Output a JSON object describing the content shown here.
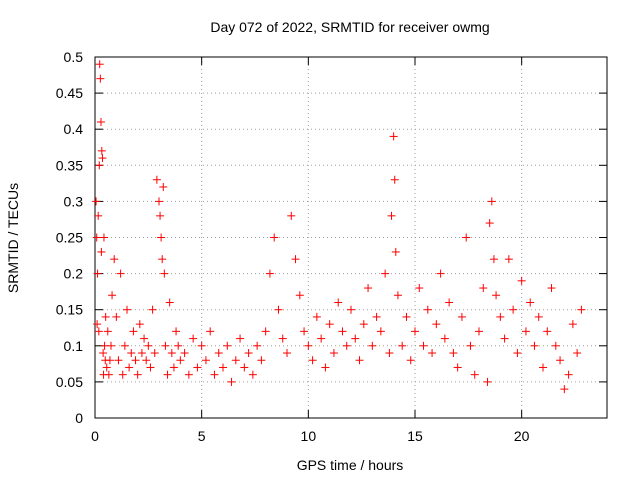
{
  "chart_data": {
    "type": "scatter",
    "title": "Day 072 of 2022, SRMTID for receiver owmg",
    "xlabel": "GPS time / hours",
    "ylabel": "SRMTID / TECUs",
    "xlim": [
      0,
      24
    ],
    "ylim": [
      0,
      0.5
    ],
    "xticks": [
      0,
      5,
      10,
      15,
      20
    ],
    "xtick_labels": [
      "0",
      "5",
      "10",
      "15",
      "20"
    ],
    "yticks": [
      0,
      0.05,
      0.1,
      0.15,
      0.2,
      0.25,
      0.3,
      0.35,
      0.4,
      0.45,
      0.5
    ],
    "ytick_labels": [
      "0",
      "0.05",
      "0.1",
      "0.15",
      "0.2",
      "0.25",
      "0.3",
      "0.35",
      "0.4",
      "0.45",
      "0.5"
    ],
    "grid": true,
    "marker": "+",
    "marker_color": "#ff0000",
    "series": [
      {
        "name": "SRMTID",
        "x": [
          0.05,
          0.08,
          0.1,
          0.12,
          0.15,
          0.18,
          0.2,
          0.22,
          0.25,
          0.28,
          0.3,
          0.32,
          0.35,
          0.38,
          0.4,
          0.42,
          0.45,
          0.48,
          0.5,
          0.55,
          0.6,
          0.65,
          0.7,
          0.75,
          0.8,
          0.9,
          1.0,
          1.1,
          1.2,
          1.3,
          1.4,
          1.5,
          1.6,
          1.7,
          1.8,
          1.9,
          2.0,
          2.1,
          2.2,
          2.3,
          2.4,
          2.5,
          2.6,
          2.7,
          2.8,
          2.9,
          3.0,
          3.05,
          3.1,
          3.15,
          3.2,
          3.25,
          3.3,
          3.4,
          3.5,
          3.6,
          3.7,
          3.8,
          3.9,
          4.0,
          4.2,
          4.4,
          4.6,
          4.8,
          5.0,
          5.2,
          5.4,
          5.6,
          5.8,
          6.0,
          6.2,
          6.4,
          6.6,
          6.8,
          7.0,
          7.2,
          7.4,
          7.6,
          7.8,
          8.0,
          8.2,
          8.4,
          8.6,
          8.8,
          9.0,
          9.2,
          9.4,
          9.6,
          9.8,
          10.0,
          10.2,
          10.4,
          10.6,
          10.8,
          11.0,
          11.2,
          11.4,
          11.6,
          11.8,
          12.0,
          12.2,
          12.4,
          12.6,
          12.8,
          13.0,
          13.2,
          13.4,
          13.6,
          13.8,
          13.9,
          14.0,
          14.05,
          14.1,
          14.2,
          14.4,
          14.6,
          14.8,
          15.0,
          15.2,
          15.4,
          15.6,
          15.8,
          16.0,
          16.2,
          16.4,
          16.6,
          16.8,
          17.0,
          17.2,
          17.4,
          17.6,
          17.8,
          18.0,
          18.2,
          18.4,
          18.5,
          18.6,
          18.7,
          18.8,
          19.0,
          19.2,
          19.4,
          19.6,
          19.8,
          20.0,
          20.2,
          20.4,
          20.6,
          20.8,
          21.0,
          21.2,
          21.4,
          21.6,
          21.8,
          22.0,
          22.2,
          22.4,
          22.6,
          22.8
        ],
        "y": [
          0.3,
          0.25,
          0.13,
          0.2,
          0.28,
          0.12,
          0.35,
          0.49,
          0.47,
          0.41,
          0.23,
          0.37,
          0.36,
          0.09,
          0.06,
          0.25,
          0.1,
          0.08,
          0.14,
          0.07,
          0.12,
          0.06,
          0.08,
          0.1,
          0.17,
          0.22,
          0.14,
          0.08,
          0.2,
          0.06,
          0.1,
          0.15,
          0.07,
          0.09,
          0.12,
          0.08,
          0.06,
          0.13,
          0.09,
          0.11,
          0.08,
          0.1,
          0.07,
          0.15,
          0.09,
          0.33,
          0.3,
          0.28,
          0.25,
          0.22,
          0.32,
          0.2,
          0.1,
          0.06,
          0.16,
          0.09,
          0.07,
          0.12,
          0.1,
          0.08,
          0.09,
          0.06,
          0.11,
          0.07,
          0.1,
          0.08,
          0.12,
          0.06,
          0.09,
          0.07,
          0.1,
          0.05,
          0.08,
          0.11,
          0.07,
          0.09,
          0.06,
          0.1,
          0.08,
          0.12,
          0.2,
          0.25,
          0.15,
          0.11,
          0.09,
          0.28,
          0.22,
          0.17,
          0.12,
          0.1,
          0.08,
          0.14,
          0.11,
          0.07,
          0.13,
          0.09,
          0.16,
          0.12,
          0.1,
          0.15,
          0.11,
          0.08,
          0.13,
          0.18,
          0.1,
          0.14,
          0.12,
          0.2,
          0.09,
          0.28,
          0.39,
          0.33,
          0.23,
          0.17,
          0.1,
          0.14,
          0.08,
          0.12,
          0.18,
          0.1,
          0.15,
          0.09,
          0.13,
          0.2,
          0.11,
          0.16,
          0.09,
          0.07,
          0.14,
          0.25,
          0.1,
          0.06,
          0.12,
          0.18,
          0.05,
          0.27,
          0.3,
          0.22,
          0.17,
          0.14,
          0.11,
          0.22,
          0.15,
          0.09,
          0.19,
          0.12,
          0.16,
          0.1,
          0.14,
          0.07,
          0.12,
          0.18,
          0.1,
          0.08,
          0.04,
          0.06,
          0.13,
          0.09,
          0.15
        ]
      }
    ]
  }
}
